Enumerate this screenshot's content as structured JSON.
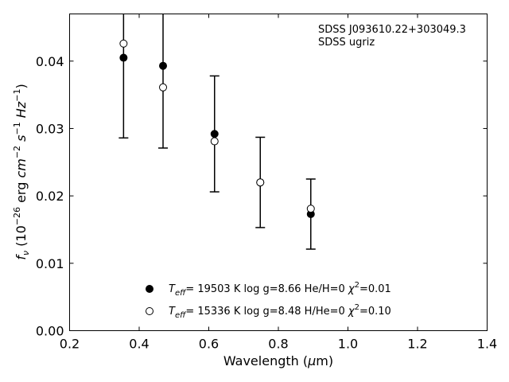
{
  "chart_data": {
    "type": "scatter",
    "annotation_lines": [
      "SDSS J093610.22+303049.3",
      "SDSS ugriz"
    ],
    "xlabel": "Wavelength (μm)",
    "ylabel": "f_ν (10^-26 erg cm^-2 s^-1 Hz^-1)",
    "xlim": [
      0.2,
      1.4
    ],
    "ylim": [
      0.0,
      0.047
    ],
    "xticks": [
      "0.2",
      "0.4",
      "0.6",
      "0.8",
      "1.0",
      "1.2",
      "1.4"
    ],
    "yticks": [
      "0.00",
      "0.01",
      "0.02",
      "0.03",
      "0.04"
    ],
    "grid": false,
    "legend_position": "bottom-center",
    "observed": {
      "x": [
        0.3551,
        0.4686,
        0.6166,
        0.748,
        0.8932
      ],
      "y": [
        0.0405,
        0.0393,
        0.0292,
        0.022,
        0.0173
      ],
      "yerr": [
        0.0119,
        0.0122,
        0.0086,
        0.0067,
        0.0052
      ]
    },
    "series": [
      {
        "name": "T_eff= 19503 K  log g=8.66  He/H=0  χ²=0.01",
        "marker": "filled-circle",
        "x": [
          0.3551,
          0.4686,
          0.6166,
          0.748,
          0.8932
        ],
        "y": [
          0.0405,
          0.0393,
          0.0292,
          0.022,
          0.0173
        ]
      },
      {
        "name": "T_eff= 15336 K  log g=8.48  H/He=0  χ²=0.10",
        "marker": "open-circle",
        "x": [
          0.3551,
          0.4686,
          0.6166,
          0.748,
          0.8932
        ],
        "y": [
          0.0426,
          0.0361,
          0.0281,
          0.022,
          0.0181
        ]
      }
    ]
  }
}
